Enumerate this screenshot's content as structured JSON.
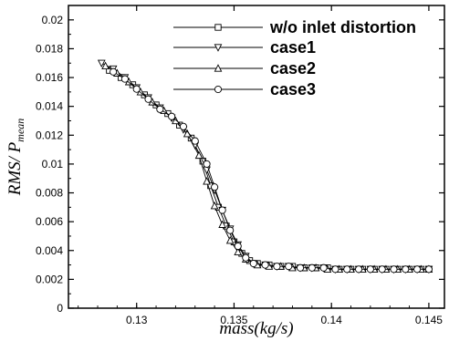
{
  "chart_data": {
    "type": "line",
    "title": "",
    "xlabel": "mass(kg/s)",
    "ylabel": "RMS/ P",
    "ylabel_subscript": "mean",
    "xlim": [
      0.1265,
      0.1458
    ],
    "ylim": [
      0,
      0.021
    ],
    "xticks": [
      0.13,
      0.135,
      0.14,
      0.145
    ],
    "xtick_labels": [
      "0.13",
      "0.135",
      "0.14",
      "0.145"
    ],
    "yticks": [
      0,
      0.002,
      0.004,
      0.006,
      0.008,
      0.01,
      0.012,
      0.014,
      0.016,
      0.018,
      0.02
    ],
    "ytick_labels": [
      "0",
      "0.002",
      "0.004",
      "0.006",
      "0.008",
      "0.01",
      "0.012",
      "0.014",
      "0.016",
      "0.018",
      "0.02"
    ],
    "grid": false,
    "legend_position": "top-right",
    "series": [
      {
        "name": "w/o inlet distortion",
        "marker": "square",
        "x": [
          0.1286,
          0.1292,
          0.1298,
          0.1304,
          0.131,
          0.1316,
          0.1322,
          0.1328,
          0.1334,
          0.1338,
          0.1342,
          0.1346,
          0.135,
          0.1354,
          0.1358,
          0.1362,
          0.1368,
          0.1374,
          0.138,
          0.1386,
          0.1392,
          0.1398,
          0.1404,
          0.141,
          0.1416,
          0.1422,
          0.1428,
          0.1434,
          0.144,
          0.1446,
          0.145
        ],
        "y": [
          0.0165,
          0.016,
          0.0155,
          0.0148,
          0.0141,
          0.0135,
          0.0127,
          0.0118,
          0.0102,
          0.0085,
          0.007,
          0.0057,
          0.0046,
          0.0038,
          0.0033,
          0.0031,
          0.003,
          0.0029,
          0.0029,
          0.0028,
          0.0028,
          0.0028,
          0.0027,
          0.0027,
          0.0027,
          0.0027,
          0.0027,
          0.0027,
          0.0027,
          0.0027,
          0.0027
        ]
      },
      {
        "name": "case1",
        "marker": "triangle-down",
        "x": [
          0.1282,
          0.1288,
          0.1294,
          0.13,
          0.1306,
          0.1312,
          0.1318,
          0.1324,
          0.133,
          0.1336,
          0.134,
          0.1344,
          0.1348,
          0.1352,
          0.1356,
          0.136,
          0.1366,
          0.1372,
          0.1378,
          0.1384,
          0.139,
          0.1396,
          0.1402,
          0.1408,
          0.1414,
          0.142,
          0.1426,
          0.1432,
          0.1438,
          0.1444,
          0.145
        ],
        "y": [
          0.017,
          0.0166,
          0.016,
          0.0153,
          0.0146,
          0.0139,
          0.0132,
          0.0124,
          0.0113,
          0.0096,
          0.0082,
          0.0068,
          0.0055,
          0.0044,
          0.0036,
          0.0031,
          0.003,
          0.0029,
          0.0029,
          0.0028,
          0.0028,
          0.0028,
          0.0027,
          0.0027,
          0.0027,
          0.0027,
          0.0027,
          0.0027,
          0.0027,
          0.0027,
          0.0027
        ]
      },
      {
        "name": "case2",
        "marker": "triangle-up",
        "x": [
          0.1284,
          0.129,
          0.1296,
          0.1302,
          0.1308,
          0.1314,
          0.132,
          0.1326,
          0.1332,
          0.1336,
          0.134,
          0.1344,
          0.1348,
          0.1352,
          0.1356,
          0.1362,
          0.1368,
          0.1374,
          0.138,
          0.1386,
          0.1392,
          0.1398,
          0.1404,
          0.141,
          0.1416,
          0.1422,
          0.1428,
          0.1434,
          0.144,
          0.1446,
          0.145
        ],
        "y": [
          0.0168,
          0.0163,
          0.0157,
          0.015,
          0.0143,
          0.0137,
          0.013,
          0.0121,
          0.0106,
          0.0088,
          0.0071,
          0.0058,
          0.0047,
          0.0039,
          0.0034,
          0.003,
          0.0029,
          0.0029,
          0.0028,
          0.0028,
          0.0028,
          0.0027,
          0.0027,
          0.0027,
          0.0027,
          0.0027,
          0.0027,
          0.0027,
          0.0027,
          0.0027,
          0.0027
        ]
      },
      {
        "name": "case3",
        "marker": "circle",
        "x": [
          0.1288,
          0.1294,
          0.13,
          0.1306,
          0.1312,
          0.1318,
          0.1324,
          0.133,
          0.1336,
          0.134,
          0.1344,
          0.1348,
          0.1352,
          0.1356,
          0.136,
          0.1366,
          0.1372,
          0.1378,
          0.1384,
          0.139,
          0.1396,
          0.1402,
          0.1408,
          0.1414,
          0.142,
          0.1426,
          0.1432,
          0.1438,
          0.1444,
          0.145
        ],
        "y": [
          0.0164,
          0.0159,
          0.0152,
          0.0145,
          0.0138,
          0.0133,
          0.0126,
          0.0116,
          0.01,
          0.0084,
          0.0068,
          0.0054,
          0.0043,
          0.0035,
          0.0031,
          0.003,
          0.0029,
          0.0029,
          0.0028,
          0.0028,
          0.0028,
          0.0027,
          0.0027,
          0.0027,
          0.0027,
          0.0027,
          0.0027,
          0.0027,
          0.0027,
          0.0027
        ]
      }
    ]
  }
}
